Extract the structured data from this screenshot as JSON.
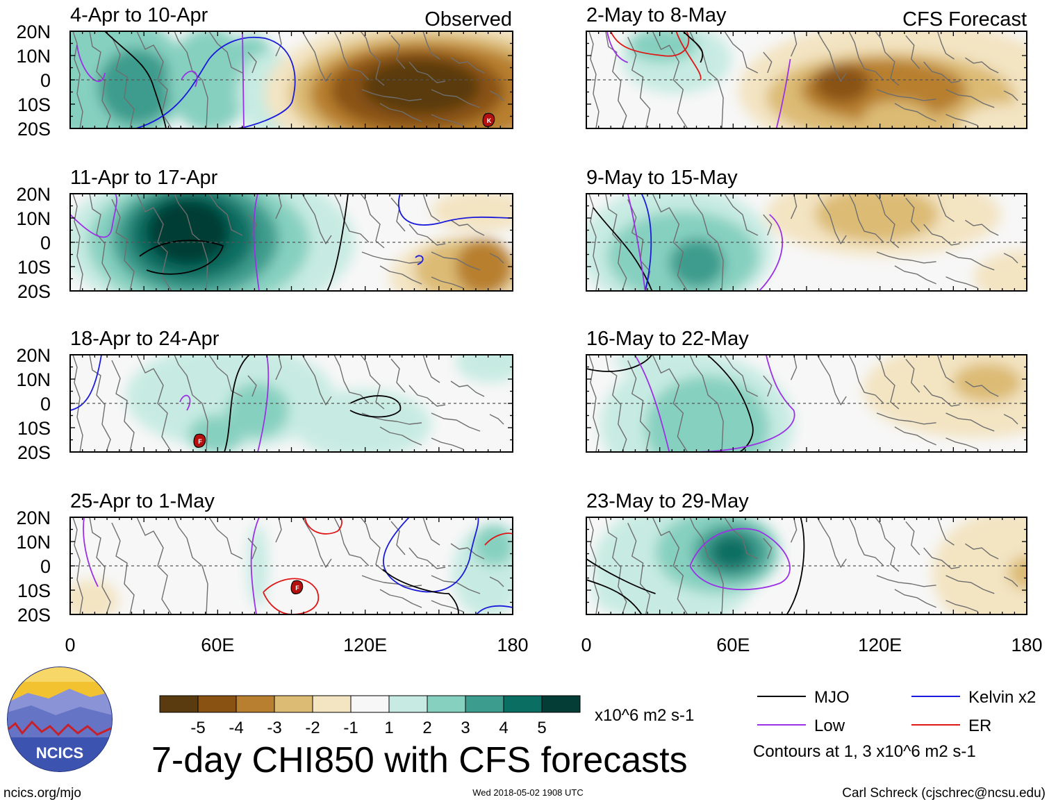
{
  "header": {
    "left_label": "Observed",
    "right_label": "CFS Forecast"
  },
  "panels": [
    {
      "title": "4-Apr to 10-Apr"
    },
    {
      "title": "11-Apr to 17-Apr"
    },
    {
      "title": "18-Apr to 24-Apr"
    },
    {
      "title": "25-Apr to 1-May"
    },
    {
      "title": "2-May to 8-May"
    },
    {
      "title": "9-May to 15-May"
    },
    {
      "title": "16-May to 22-May"
    },
    {
      "title": "23-May to 29-May"
    }
  ],
  "axes": {
    "lat_labels": [
      "20N",
      "10N",
      "0",
      "10S",
      "20S"
    ],
    "lon_labels": [
      "0",
      "60E",
      "120E",
      "180"
    ]
  },
  "colorbar": {
    "labels": [
      "-5",
      "-4",
      "-3",
      "-2",
      "-1",
      "1",
      "2",
      "3",
      "4",
      "5"
    ],
    "colors": [
      "#5a3b10",
      "#8a5212",
      "#b77f2f",
      "#dcbb75",
      "#f3e4c2",
      "#f7f7f7",
      "#c7ebe2",
      "#86d0c0",
      "#3c9c8d",
      "#0b6e62",
      "#043d35"
    ],
    "unit": "x10^6 m2 s-1"
  },
  "legend": {
    "items": [
      {
        "label": "MJO",
        "color": "#000000"
      },
      {
        "label": "Kelvin x2",
        "color": "#1a1adb"
      },
      {
        "label": "Low",
        "color": "#9b30e6"
      },
      {
        "label": "ER",
        "color": "#e01515"
      }
    ],
    "note": "Contours at 1, 3 x10^6 m2 s-1"
  },
  "main_title": "7-day CHI850 with CFS forecasts",
  "footer": {
    "left": "ncics.org/mjo",
    "center": "Wed 2018-05-02 1908 UTC",
    "right": "Carl Schreck (cjschrec@ncsu.edu)"
  },
  "logo": {
    "text": "NCICS"
  },
  "storm_markers": [
    "K",
    "F",
    "F"
  ]
}
